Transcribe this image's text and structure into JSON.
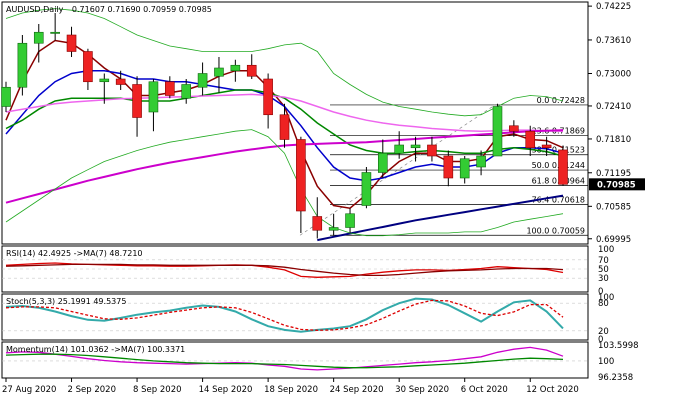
{
  "chart_data": {
    "type": "candlestick",
    "header": {
      "symbol": "AUDUSD,Daily",
      "ohlc": "0.71607 0.71690 0.70959 0.70985"
    },
    "price_axis": {
      "ylim": [
        0.699,
        0.743
      ],
      "ticks": [
        "0.74225",
        "0.73610",
        "0.73000",
        "0.72410",
        "0.71810",
        "0.71195",
        "0.70585",
        "0.69995"
      ],
      "tick_values": [
        0.74225,
        0.7361,
        0.73,
        0.7241,
        0.7181,
        0.71195,
        0.70585,
        0.69995
      ],
      "last_price": "0.70985"
    },
    "x_ticks": [
      {
        "label": "27 Aug 2020",
        "index": 0
      },
      {
        "label": "2 Sep 2020",
        "index": 4
      },
      {
        "label": "8 Sep 2020",
        "index": 8
      },
      {
        "label": "14 Sep 2020",
        "index": 12
      },
      {
        "label": "18 Sep 2020",
        "index": 16
      },
      {
        "label": "24 Sep 2020",
        "index": 20
      },
      {
        "label": "30 Sep 2020",
        "index": 24
      },
      {
        "label": "6 Oct 2020",
        "index": 28
      },
      {
        "label": "12 Oct 2020",
        "index": 32
      }
    ],
    "candles": [
      {
        "o": 0.724,
        "h": 0.7285,
        "l": 0.723,
        "c": 0.7275
      },
      {
        "o": 0.7275,
        "h": 0.737,
        "l": 0.726,
        "c": 0.7355
      },
      {
        "o": 0.7355,
        "h": 0.739,
        "l": 0.732,
        "c": 0.7375
      },
      {
        "o": 0.7375,
        "h": 0.741,
        "l": 0.736,
        "c": 0.7375
      },
      {
        "o": 0.737,
        "h": 0.7385,
        "l": 0.733,
        "c": 0.734
      },
      {
        "o": 0.734,
        "h": 0.7345,
        "l": 0.727,
        "c": 0.7285
      },
      {
        "o": 0.7285,
        "h": 0.73,
        "l": 0.7245,
        "c": 0.729
      },
      {
        "o": 0.729,
        "h": 0.7305,
        "l": 0.727,
        "c": 0.728
      },
      {
        "o": 0.728,
        "h": 0.7295,
        "l": 0.7185,
        "c": 0.722
      },
      {
        "o": 0.723,
        "h": 0.729,
        "l": 0.7195,
        "c": 0.7285
      },
      {
        "o": 0.7285,
        "h": 0.7295,
        "l": 0.7255,
        "c": 0.726
      },
      {
        "o": 0.7255,
        "h": 0.729,
        "l": 0.7245,
        "c": 0.728
      },
      {
        "o": 0.7275,
        "h": 0.732,
        "l": 0.726,
        "c": 0.73
      },
      {
        "o": 0.7295,
        "h": 0.733,
        "l": 0.7265,
        "c": 0.731
      },
      {
        "o": 0.7305,
        "h": 0.7325,
        "l": 0.7285,
        "c": 0.7315
      },
      {
        "o": 0.7315,
        "h": 0.7335,
        "l": 0.729,
        "c": 0.7295
      },
      {
        "o": 0.729,
        "h": 0.73,
        "l": 0.72,
        "c": 0.7225
      },
      {
        "o": 0.7225,
        "h": 0.7245,
        "l": 0.7165,
        "c": 0.718
      },
      {
        "o": 0.718,
        "h": 0.7185,
        "l": 0.701,
        "c": 0.705
      },
      {
        "o": 0.704,
        "h": 0.7075,
        "l": 0.7,
        "c": 0.7015
      },
      {
        "o": 0.7015,
        "h": 0.7045,
        "l": 0.7005,
        "c": 0.702
      },
      {
        "o": 0.702,
        "h": 0.7055,
        "l": 0.701,
        "c": 0.7045
      },
      {
        "o": 0.706,
        "h": 0.713,
        "l": 0.7055,
        "c": 0.712
      },
      {
        "o": 0.712,
        "h": 0.718,
        "l": 0.711,
        "c": 0.7155
      },
      {
        "o": 0.7155,
        "h": 0.7195,
        "l": 0.7145,
        "c": 0.717
      },
      {
        "o": 0.7165,
        "h": 0.7185,
        "l": 0.714,
        "c": 0.717
      },
      {
        "o": 0.717,
        "h": 0.7185,
        "l": 0.714,
        "c": 0.715
      },
      {
        "o": 0.715,
        "h": 0.716,
        "l": 0.7095,
        "c": 0.711
      },
      {
        "o": 0.711,
        "h": 0.715,
        "l": 0.71,
        "c": 0.7145
      },
      {
        "o": 0.713,
        "h": 0.716,
        "l": 0.7115,
        "c": 0.715
      },
      {
        "o": 0.715,
        "h": 0.7245,
        "l": 0.715,
        "c": 0.724
      },
      {
        "o": 0.7205,
        "h": 0.7215,
        "l": 0.7185,
        "c": 0.7195
      },
      {
        "o": 0.7195,
        "h": 0.7205,
        "l": 0.715,
        "c": 0.7165
      },
      {
        "o": 0.717,
        "h": 0.7185,
        "l": 0.715,
        "c": 0.7165
      },
      {
        "o": 0.7161,
        "h": 0.7169,
        "l": 0.7096,
        "c": 0.70985
      }
    ],
    "overlays": [
      {
        "color": "#8a0000",
        "values": [
          0.7215,
          0.7285,
          0.734,
          0.736,
          0.7355,
          0.7335,
          0.731,
          0.729,
          0.726,
          0.726,
          0.7265,
          0.727,
          0.728,
          0.7295,
          0.7305,
          0.7305,
          0.7275,
          0.724,
          0.716,
          0.7095,
          0.706,
          0.7055,
          0.708,
          0.7115,
          0.714,
          0.7155,
          0.7155,
          0.714,
          0.714,
          0.7145,
          0.7185,
          0.719,
          0.718,
          0.7178,
          0.7165
        ]
      },
      {
        "color": "#0000cc",
        "values": [
          0.719,
          0.7225,
          0.726,
          0.7285,
          0.73,
          0.7305,
          0.7305,
          0.73,
          0.729,
          0.729,
          0.7285,
          0.7285,
          0.728,
          0.7275,
          0.727,
          0.727,
          0.726,
          0.724,
          0.7205,
          0.7165,
          0.713,
          0.711,
          0.7105,
          0.711,
          0.712,
          0.713,
          0.7135,
          0.713,
          0.713,
          0.7135,
          0.7155,
          0.7165,
          0.7165,
          0.7163,
          0.7155
        ]
      },
      {
        "color": "#008800",
        "values": [
          0.72,
          0.7215,
          0.7235,
          0.725,
          0.7255,
          0.7255,
          0.7255,
          0.7255,
          0.725,
          0.725,
          0.725,
          0.7255,
          0.726,
          0.7265,
          0.727,
          0.727,
          0.7265,
          0.7255,
          0.7235,
          0.721,
          0.719,
          0.717,
          0.716,
          0.7155,
          0.7155,
          0.7158,
          0.716,
          0.7158,
          0.7155,
          0.7155,
          0.7162,
          0.7165,
          0.7162,
          0.7158,
          0.715
        ]
      },
      {
        "color": "#ee66ee",
        "values": [
          0.723,
          0.7235,
          0.724,
          0.7245,
          0.7248,
          0.725,
          0.7252,
          0.7254,
          0.7255,
          0.7256,
          0.7257,
          0.7258,
          0.7259,
          0.726,
          0.7261,
          0.7262,
          0.726,
          0.7257,
          0.725,
          0.724,
          0.723,
          0.7222,
          0.7215,
          0.721,
          0.7206,
          0.7203,
          0.72,
          0.7198,
          0.7196,
          0.7195,
          0.7196,
          0.7197,
          0.7197,
          0.7196,
          0.7195
        ]
      },
      {
        "color": "#cc00cc",
        "values": [
          0.7065,
          0.7073,
          0.7081,
          0.7089,
          0.7097,
          0.7105,
          0.7112,
          0.7119,
          0.7126,
          0.7132,
          0.7138,
          0.7143,
          0.7148,
          0.7153,
          0.7158,
          0.7162,
          0.7166,
          0.7169,
          0.7171,
          0.7172,
          0.7173,
          0.7174,
          0.7175,
          0.7177,
          0.7179,
          0.7181,
          0.7183,
          0.7185,
          0.7187,
          0.7189,
          0.7191,
          0.7193,
          0.7195,
          0.7196,
          0.7197
        ]
      },
      {
        "color": "#000080",
        "values": [
          null,
          null,
          null,
          null,
          null,
          null,
          null,
          null,
          null,
          null,
          null,
          null,
          null,
          null,
          null,
          null,
          null,
          null,
          null,
          0.6997,
          0.7003,
          0.7009,
          0.7015,
          0.7021,
          0.7027,
          0.7033,
          0.7038,
          0.7043,
          0.7048,
          0.7053,
          0.7058,
          0.7063,
          0.7068,
          0.7073,
          0.7078
        ]
      },
      {
        "color": "#22aa22",
        "values": [
          0.74,
          0.741,
          0.7415,
          0.7418,
          0.7415,
          0.741,
          0.74,
          0.7385,
          0.737,
          0.736,
          0.735,
          0.7345,
          0.734,
          0.734,
          0.734,
          0.734,
          0.7345,
          0.7352,
          0.7355,
          0.734,
          0.73,
          0.728,
          0.7262,
          0.7248,
          0.724,
          0.7235,
          0.723,
          0.7226,
          0.7223,
          0.7225,
          0.724,
          0.7255,
          0.726,
          0.7258,
          0.725
        ]
      },
      {
        "color": "#22aa22",
        "values": [
          0.703,
          0.705,
          0.707,
          0.709,
          0.711,
          0.7125,
          0.714,
          0.715,
          0.716,
          0.7168,
          0.7175,
          0.718,
          0.7185,
          0.719,
          0.7195,
          0.7198,
          0.7185,
          0.7155,
          0.709,
          0.704,
          0.702,
          0.701,
          0.7005,
          0.7005,
          0.7007,
          0.701,
          0.701,
          0.701,
          0.7012,
          0.7012,
          0.702,
          0.703,
          0.7035,
          0.704,
          0.7045
        ]
      }
    ],
    "fib_levels": [
      {
        "label": "0.0 0.72428",
        "value": 0.72428
      },
      {
        "label": "23.6 0.71869",
        "value": 0.71869
      },
      {
        "label": "38.2 0.71523",
        "value": 0.71523
      },
      {
        "label": "50.0 0.71244",
        "value": 0.71244
      },
      {
        "label": "61.8 0.70964",
        "value": 0.70964
      },
      {
        "label": "76.4 0.70618",
        "value": 0.70618
      },
      {
        "label": "100.0 0.70059",
        "value": 0.70059
      }
    ],
    "indicators": [
      {
        "label": "RSI(14) 42.4925 ->MA(7) 48.7210",
        "ylim": [
          0,
          100
        ],
        "ticks": [
          "100",
          "70",
          "50",
          "30",
          "0"
        ],
        "tick_values": [
          100,
          70,
          50,
          30,
          0
        ],
        "levels": [
          70,
          50,
          30
        ],
        "series": [
          {
            "color": "#dd0000",
            "values": [
              58,
              60,
              62,
              63,
              61,
              60,
              59,
              58,
              57,
              57,
              56,
              56,
              57,
              58,
              59,
              58,
              54,
              48,
              34,
              32,
              33,
              34,
              39,
              43,
              46,
              48,
              48,
              47,
              49,
              51,
              55,
              53,
              51,
              49,
              42.4925
            ]
          },
          {
            "color": "#8a0000",
            "values": [
              56,
              57,
              58,
              59,
              60,
              60,
              60,
              60,
              59,
              59,
              58,
              58,
              58,
              58,
              58,
              58,
              57,
              54,
              49,
              45,
              41,
              38,
              36,
              36,
              38,
              41,
              44,
              46,
              47,
              48,
              50,
              51,
              51,
              51,
              48.721
            ]
          }
        ]
      },
      {
        "label": "Stoch(5,3,3) 25.1991 49.5375",
        "ylim": [
          0,
          100
        ],
        "ticks": [
          "100",
          "80",
          "20",
          "0"
        ],
        "tick_values": [
          100,
          80,
          20,
          0
        ],
        "levels": [
          80,
          20
        ],
        "series": [
          {
            "color": "#33aaaa",
            "values": [
              72,
              74,
              70,
              62,
              52,
              44,
              42,
              48,
              55,
              60,
              64,
              70,
              75,
              72,
              62,
              45,
              30,
              22,
              18,
              22,
              25,
              30,
              45,
              65,
              80,
              90,
              88,
              76,
              58,
              40,
              62,
              82,
              86,
              62,
              25.1991
            ]
          },
          {
            "color": "#dd0000",
            "values": [
              70,
              72,
              72,
              70,
              62,
              54,
              46,
              45,
              48,
              54,
              60,
              65,
              70,
              72,
              70,
              60,
              46,
              32,
              23,
              21,
              22,
              26,
              33,
              47,
              63,
              78,
              86,
              85,
              74,
              58,
              53,
              61,
              77,
              77,
              49.5375
            ],
            "dashed": true
          }
        ]
      },
      {
        "label": "Momentum(14) 101.0362 ->MA(7) 100.3371",
        "ylim": [
          96.2,
          104.2
        ],
        "ticks": [
          "103.5998",
          "100",
          "96.2358"
        ],
        "tick_values": [
          103.5998,
          100,
          96.2358
        ],
        "levels": [
          100
        ],
        "series": [
          {
            "color": "#cc00cc",
            "values": [
              101.8,
              102.0,
              101.9,
              101.5,
              101.0,
              100.5,
              100.1,
              99.8,
              99.6,
              99.5,
              99.4,
              99.3,
              99.4,
              99.5,
              99.6,
              99.5,
              99.1,
              98.8,
              98.2,
              98.0,
              98.2,
              98.4,
              98.7,
              99.0,
              99.3,
              99.6,
              99.8,
              100.1,
              100.5,
              100.9,
              101.9,
              102.6,
              103.0,
              102.4,
              101.0362
            ]
          },
          {
            "color": "#008800",
            "values": [
              101.3,
              101.4,
              101.5,
              101.5,
              101.4,
              101.2,
              100.9,
              100.6,
              100.3,
              100.0,
              99.8,
              99.6,
              99.5,
              99.4,
              99.4,
              99.4,
              99.3,
              99.2,
              99.0,
              98.8,
              98.6,
              98.5,
              98.5,
              98.6,
              98.7,
              98.9,
              99.1,
              99.3,
              99.5,
              99.8,
              100.1,
              100.4,
              100.6,
              100.5,
              100.3371
            ]
          }
        ]
      }
    ]
  }
}
